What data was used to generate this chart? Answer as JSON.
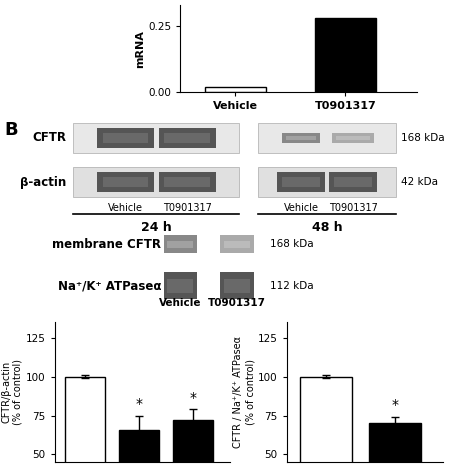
{
  "top_bar": {
    "categories": [
      "Vehicle",
      "T0901317"
    ],
    "values": [
      0.02,
      0.28
    ],
    "colors": [
      "white",
      "black"
    ],
    "ylabel": "mRNA",
    "yticks": [
      0.0,
      0.25
    ],
    "ylim": [
      0,
      0.33
    ],
    "bar_edgecolor": "black",
    "bar_width": 0.5
  },
  "left_bar": {
    "values": [
      100,
      66,
      72
    ],
    "errors": [
      1,
      9,
      7
    ],
    "colors": [
      "white",
      "black",
      "black"
    ],
    "ylabel": "CFTR/β-actin\n(% of control)",
    "yticks": [
      50,
      75,
      100,
      125
    ],
    "ylim": [
      45,
      135
    ],
    "significance": [
      false,
      true,
      true
    ]
  },
  "right_bar": {
    "values": [
      100,
      70
    ],
    "errors": [
      1,
      4
    ],
    "colors": [
      "white",
      "black"
    ],
    "ylabel": "CFTR / Na⁺/K⁺ ATPaseα\n(% of control)",
    "yticks": [
      50,
      75,
      100,
      125
    ],
    "ylim": [
      45,
      135
    ],
    "significance": [
      false,
      true
    ]
  },
  "wb1_label_cftr": "CFTR",
  "wb1_label_bactin": "β-actin",
  "wb1_kda_cftr": "168 kDa",
  "wb1_kda_bactin": "42 kDa",
  "wb2_label_memcftr": "membrane CFTR",
  "wb2_label_atpase": "Na⁺/K⁺ ATPaseα",
  "wb2_kda_cftr": "168 kDa",
  "wb2_kda_atpase": "112 kDa",
  "section_B": "B"
}
